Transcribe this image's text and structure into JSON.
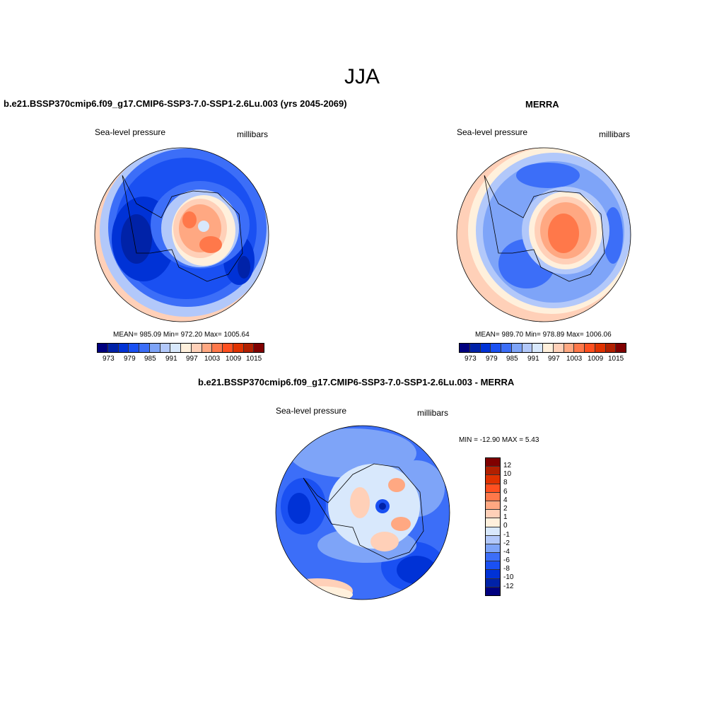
{
  "title": "JJA",
  "panels": [
    {
      "title": "b.e21.BSSP370cmip6.f09_g17.CMIP6-SSP3-7.0-SSP1-2.6Lu.003 (yrs 2045-2069)",
      "left_label": "Sea-level pressure",
      "right_label": "millibars",
      "stats": "MEAN= 985.09  Min= 972.20  Max= 1005.64"
    },
    {
      "title": "MERRA",
      "left_label": "Sea-level pressure",
      "right_label": "millibars",
      "stats": "MEAN= 989.70  Min= 978.89  Max= 1006.06"
    },
    {
      "title": "b.e21.BSSP370cmip6.f09_g17.CMIP6-SSP3-7.0-SSP1-2.6Lu.003 - MERRA",
      "left_label": "Sea-level pressure",
      "right_label": "millibars",
      "stats": "MIN = -12.90 MAX =   5.43"
    }
  ],
  "colorbar_abs": {
    "tick_labels": [
      "973",
      "979",
      "985",
      "991",
      "997",
      "1003",
      "1009",
      "1015"
    ]
  },
  "colorbar_diff": {
    "tick_labels": [
      "12",
      "10",
      "8",
      "6",
      "4",
      "2",
      "1",
      "0",
      "-1",
      "-2",
      "-4",
      "-6",
      "-8",
      "-10",
      "-12"
    ]
  },
  "palette": [
    "#00007f",
    "#0022a8",
    "#0032d6",
    "#1a50f2",
    "#3c6ef8",
    "#7ea4f8",
    "#b2c8fa",
    "#d8e8fc",
    "#fff0dc",
    "#ffd0b8",
    "#ffa882",
    "#ff784a",
    "#ff5020",
    "#e03200",
    "#b22000",
    "#800000"
  ]
}
